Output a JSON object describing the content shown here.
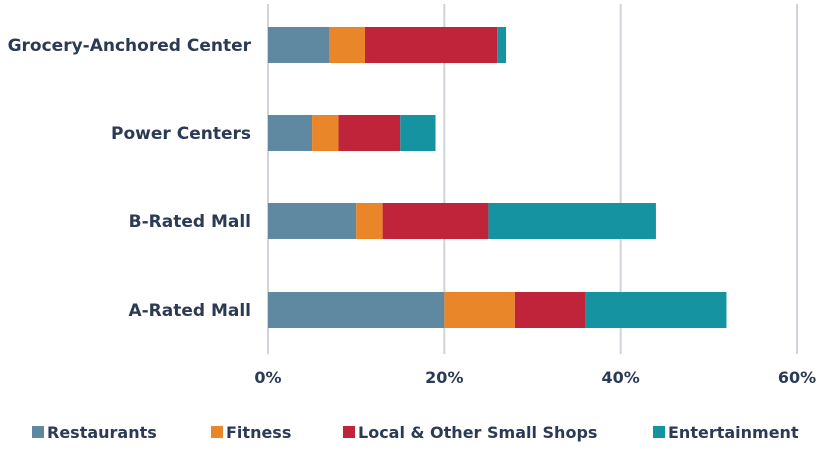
{
  "chart_data": {
    "type": "bar",
    "orientation": "horizontal",
    "stacked": true,
    "categories": [
      "Grocery-Anchored Center",
      "Power Centers",
      "B-Rated Mall",
      "A-Rated Mall"
    ],
    "series": [
      {
        "name": "Restaurants",
        "color": "#5f89a1",
        "values": [
          7,
          5,
          10,
          20
        ]
      },
      {
        "name": "Fitness",
        "color": "#e9862a",
        "values": [
          4,
          3,
          3,
          8
        ]
      },
      {
        "name": "Local & Other Small Shops",
        "color": "#c0243a",
        "values": [
          15,
          7,
          12,
          8
        ]
      },
      {
        "name": "Entertainment",
        "color": "#1693a0",
        "values": [
          1,
          4,
          19,
          16
        ]
      }
    ],
    "xlim": [
      0,
      60
    ],
    "xticks": [
      0,
      20,
      40,
      60
    ],
    "xtick_labels": [
      "0%",
      "20%",
      "40%",
      "60%"
    ],
    "grid": "vertical",
    "legend_position": "bottom",
    "title": "",
    "xlabel": "",
    "ylabel": ""
  }
}
